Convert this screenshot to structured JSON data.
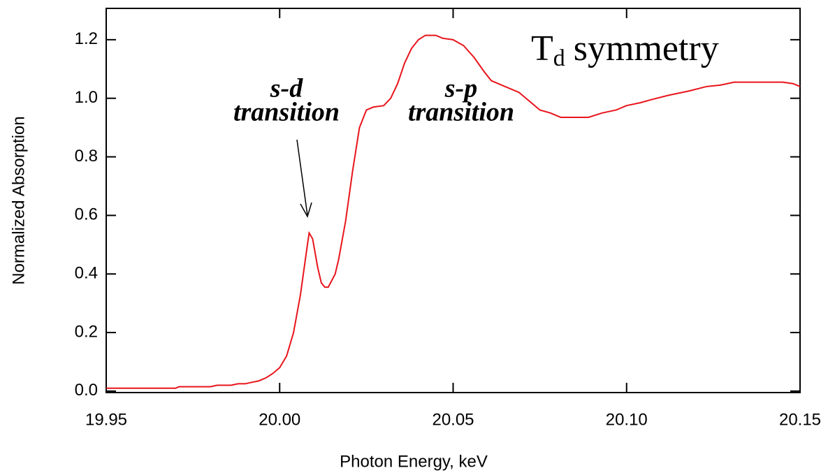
{
  "chart_data": {
    "type": "line",
    "xlabel": "Photon Energy, keV",
    "ylabel": "Normalized Absorption",
    "xlim": [
      19.95,
      20.15
    ],
    "ylim": [
      -0.005,
      1.307
    ],
    "xticks": [
      19.95,
      {
        "value": 20,
        "label": "20.00"
      },
      20.05,
      {
        "value": 20.1,
        "label": "20.10"
      },
      20.15
    ],
    "yticks": [
      {
        "value": 0,
        "label": "0.0"
      },
      0.2,
      0.4,
      0.6,
      0.8,
      {
        "value": 1,
        "label": "1.0"
      },
      1.2
    ],
    "grid": false,
    "annotations": [
      {
        "lines": [
          "s-d",
          "transition"
        ],
        "color": "#c77df0"
      },
      {
        "lines": [
          "s-p",
          "transition"
        ],
        "color": "#c77df0"
      },
      {
        "main": "T",
        "sub": "d",
        "rest": "symmetry",
        "color": "#6f9be3"
      }
    ],
    "x": [
      19.95,
      19.97,
      19.971,
      19.98,
      19.982,
      19.986,
      19.988,
      19.99,
      19.992,
      19.994,
      19.996,
      19.998,
      20.0,
      20.002,
      20.004,
      20.006,
      20.008,
      20.0085,
      20.0095,
      20.011,
      20.012,
      20.013,
      20.014,
      20.016,
      20.017,
      20.019,
      20.021,
      20.023,
      20.025,
      20.027,
      20.03,
      20.032,
      20.034,
      20.036,
      20.038,
      20.04,
      20.042,
      20.045,
      20.047,
      20.05,
      20.053,
      20.056,
      20.059,
      20.061,
      20.065,
      20.069,
      20.072,
      20.075,
      20.078,
      20.081,
      20.085,
      20.089,
      20.093,
      20.097,
      20.1,
      20.104,
      20.107,
      20.112,
      20.118,
      20.123,
      20.127,
      20.131,
      20.135,
      20.14,
      20.145,
      20.148,
      20.15
    ],
    "series": [
      {
        "color": "#e8141b",
        "values": [
          0.01,
          0.01,
          0.015,
          0.015,
          0.02,
          0.02,
          0.025,
          0.025,
          0.03,
          0.035,
          0.045,
          0.06,
          0.08,
          0.12,
          0.2,
          0.33,
          0.5,
          0.54,
          0.52,
          0.42,
          0.37,
          0.355,
          0.355,
          0.4,
          0.45,
          0.58,
          0.75,
          0.9,
          0.96,
          0.97,
          0.975,
          1.0,
          1.05,
          1.12,
          1.17,
          1.2,
          1.215,
          1.215,
          1.205,
          1.2,
          1.18,
          1.14,
          1.09,
          1.06,
          1.04,
          1.02,
          0.99,
          0.96,
          0.95,
          0.935,
          0.935,
          0.935,
          0.95,
          0.96,
          0.975,
          0.985,
          0.995,
          1.01,
          1.025,
          1.04,
          1.045,
          1.055,
          1.055,
          1.055,
          1.055,
          1.05,
          1.04
        ]
      }
    ]
  }
}
